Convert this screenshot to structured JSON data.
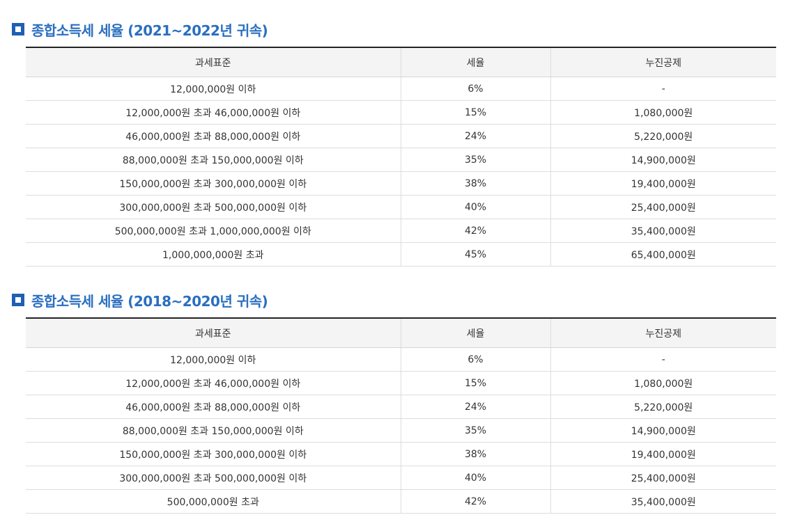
{
  "sections": [
    {
      "title": "종합소득세 세율 (2021~2022년 귀속)",
      "headers": [
        "과세표준",
        "세율",
        "누진공제"
      ],
      "rows": [
        [
          "12,000,000원 이하",
          "6%",
          "-"
        ],
        [
          "12,000,000원 초과 46,000,000원 이하",
          "15%",
          "1,080,000원"
        ],
        [
          "46,000,000원 초과 88,000,000원 이하",
          "24%",
          "5,220,000원"
        ],
        [
          "88,000,000원 초과 150,000,000원 이하",
          "35%",
          "14,900,000원"
        ],
        [
          "150,000,000원 초과 300,000,000원 이하",
          "38%",
          "19,400,000원"
        ],
        [
          "300,000,000원 초과 500,000,000원 이하",
          "40%",
          "25,400,000원"
        ],
        [
          "500,000,000원 초과 1,000,000,000원 이하",
          "42%",
          "35,400,000원"
        ],
        [
          "1,000,000,000원 초과",
          "45%",
          "65,400,000원"
        ]
      ]
    },
    {
      "title": "종합소득세 세율 (2018~2020년 귀속)",
      "headers": [
        "과세표준",
        "세율",
        "누진공제"
      ],
      "rows": [
        [
          "12,000,000원 이하",
          "6%",
          "-"
        ],
        [
          "12,000,000원 초과 46,000,000원 이하",
          "15%",
          "1,080,000원"
        ],
        [
          "46,000,000원 초과 88,000,000원 이하",
          "24%",
          "5,220,000원"
        ],
        [
          "88,000,000원 초과 150,000,000원 이하",
          "35%",
          "14,900,000원"
        ],
        [
          "150,000,000원 초과 300,000,000원 이하",
          "38%",
          "19,400,000원"
        ],
        [
          "300,000,000원 초과 500,000,000원 이하",
          "40%",
          "25,400,000원"
        ],
        [
          "500,000,000원 초과",
          "42%",
          "35,400,000원"
        ]
      ]
    }
  ],
  "colors": {
    "accent": "#2a6fbf",
    "bullet": "#1f5fb4",
    "header_bg": "#f4f4f4",
    "top_rule": "#222222"
  },
  "icons": {
    "bullet": "square-bullet-icon"
  }
}
